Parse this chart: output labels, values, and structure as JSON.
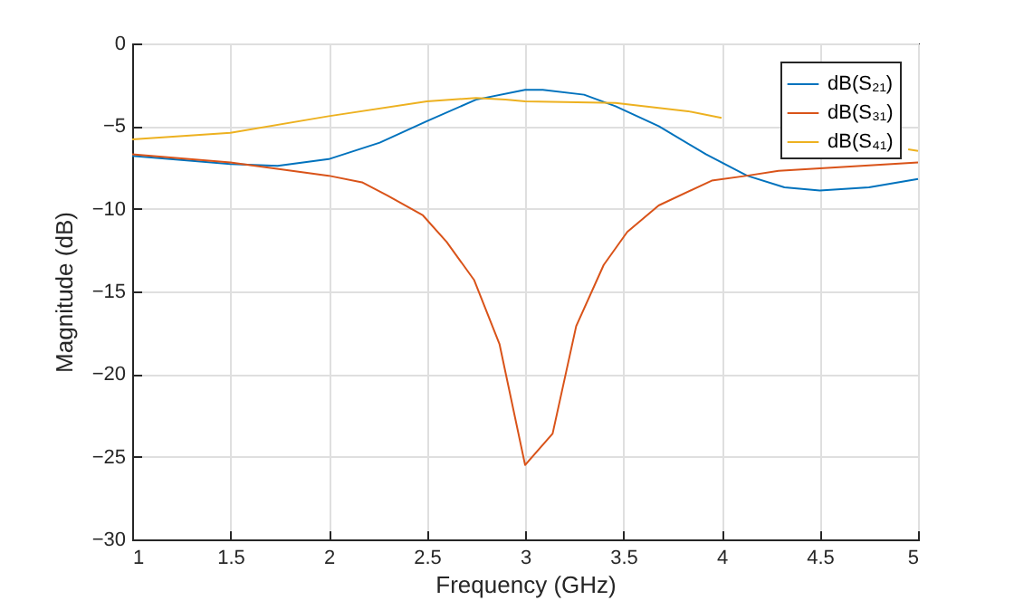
{
  "chart_data": {
    "type": "line",
    "xlabel": "Frequency (GHz)",
    "ylabel": "Magnitude (dB)",
    "xlim": [
      1,
      5
    ],
    "xticks": [
      1,
      1.5,
      2,
      2.5,
      3,
      3.5,
      4,
      4.5,
      5
    ],
    "ylim": [
      -30,
      0
    ],
    "yticks": [
      -30,
      -25,
      -20,
      -15,
      -10,
      -5,
      0
    ],
    "grid": true,
    "legend": "top right",
    "series": [
      {
        "name": "dB(S₂₁)",
        "color": "#0072bd",
        "x": [
          1,
          1.5,
          1.74,
          2,
          2.26,
          2.5,
          2.75,
          3,
          3.09,
          3.3,
          3.46,
          3.68,
          3.92,
          4.13,
          4.32,
          4.5,
          4.75,
          5
        ],
        "values": [
          -6.8,
          -7.3,
          -7.4,
          -7,
          -6,
          -4.7,
          -3.4,
          -2.8,
          -2.8,
          -3.1,
          -3.8,
          -5,
          -6.7,
          -8,
          -8.7,
          -8.9,
          -8.7,
          -8.2
        ]
      },
      {
        "name": "dB(S₃₁)",
        "color": "#d95319",
        "x": [
          1,
          1.5,
          2,
          2.17,
          2.3,
          2.48,
          2.6,
          2.74,
          2.87,
          3,
          3.14,
          3.26,
          3.4,
          3.52,
          3.68,
          3.95,
          4.13,
          4.29,
          5
        ],
        "values": [
          -6.7,
          -7.2,
          -8,
          -8.4,
          -9.2,
          -10.4,
          -12,
          -14.3,
          -18.2,
          -25.5,
          -23.6,
          -17.1,
          -13.4,
          -11.4,
          -9.8,
          -8.3,
          -8,
          -7.7,
          -7.2
        ]
      },
      {
        "name": "dB(S₄₁)",
        "color": "#edb120",
        "x": [
          1,
          1.5,
          2,
          2.5,
          2.75,
          2.9,
          3,
          3.46,
          3.83,
          4,
          4.45,
          4.95,
          5
        ],
        "values": [
          -5.8,
          -5.4,
          -4.4,
          -3.5,
          -3.3,
          -3.4,
          -3.5,
          -3.6,
          -4.1,
          -4.5,
          null,
          -6.4,
          -6.5
        ]
      }
    ]
  }
}
